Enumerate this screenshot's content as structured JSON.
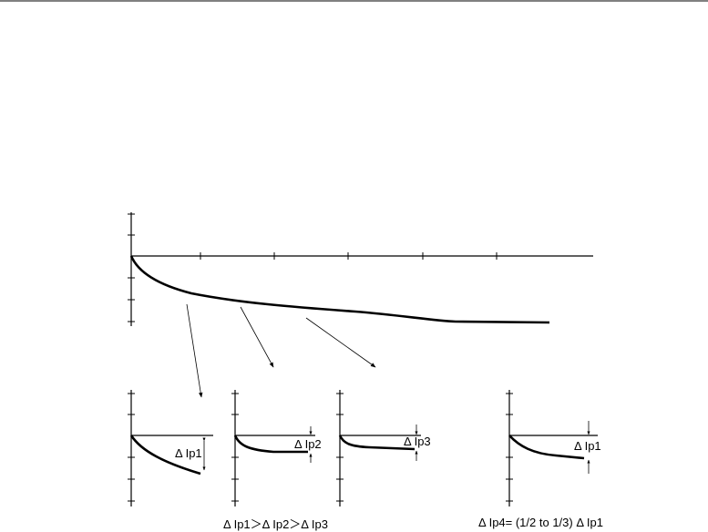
{
  "labels": {
    "dip1": "Δ Ip1",
    "dip2": "Δ Ip2",
    "dip3": "Δ Ip3",
    "dip1_right": "Δ Ip1",
    "comparison": "Δ Ip1＞Δ Ip2＞Δ Ip3",
    "dip4_relation": "Δ Ip4= (1/2 to 1/3)  Δ Ip1"
  }
}
